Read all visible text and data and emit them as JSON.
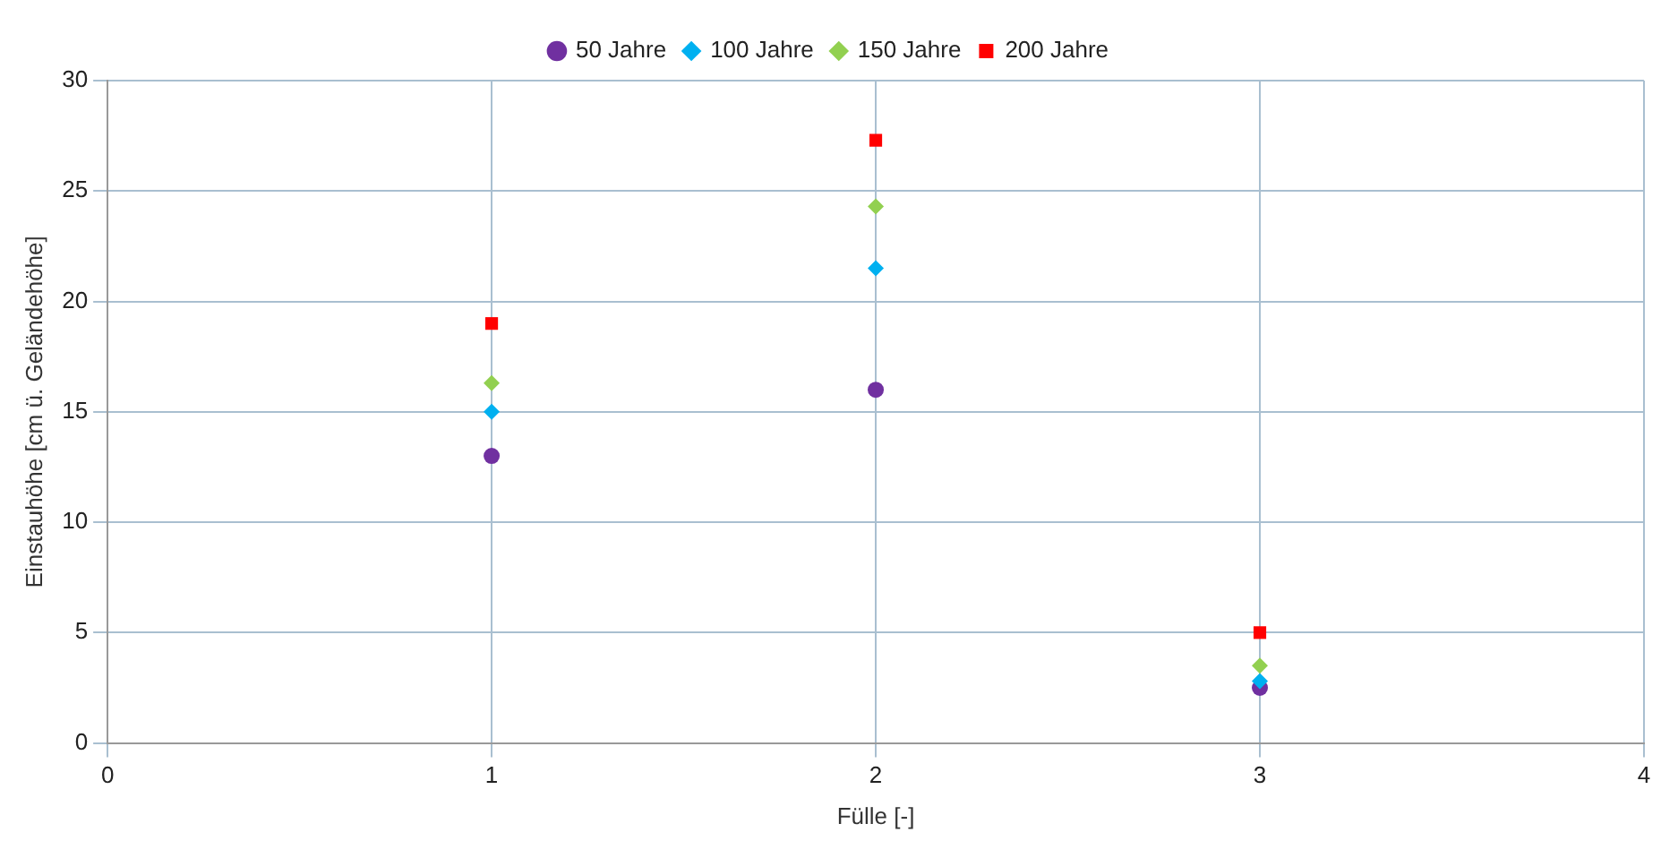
{
  "chart_data": {
    "type": "scatter",
    "xlabel": "Fülle [-]",
    "ylabel": "Einstauhöhe [cm ü. Geländehöhe]",
    "x": [
      1,
      2,
      3
    ],
    "xlim": [
      0,
      4
    ],
    "xticks": [
      0,
      1,
      2,
      3,
      4
    ],
    "ylim": [
      0,
      30
    ],
    "yticks": [
      0,
      5,
      10,
      15,
      20,
      25,
      30
    ],
    "grid": true,
    "legend": "top",
    "series": [
      {
        "name": "50 Jahre",
        "color": "#7030a0",
        "marker": "circle",
        "values": [
          13.0,
          16.0,
          2.5
        ]
      },
      {
        "name": "100 Jahre",
        "color": "#00b0f0",
        "marker": "diamond",
        "values": [
          15.0,
          21.5,
          2.8
        ]
      },
      {
        "name": "150 Jahre",
        "color": "#92d050",
        "marker": "diamond",
        "values": [
          16.3,
          24.3,
          3.5
        ]
      },
      {
        "name": "200 Jahre",
        "color": "#ff0000",
        "marker": "square",
        "values": [
          19.0,
          27.3,
          5.0
        ]
      }
    ]
  }
}
